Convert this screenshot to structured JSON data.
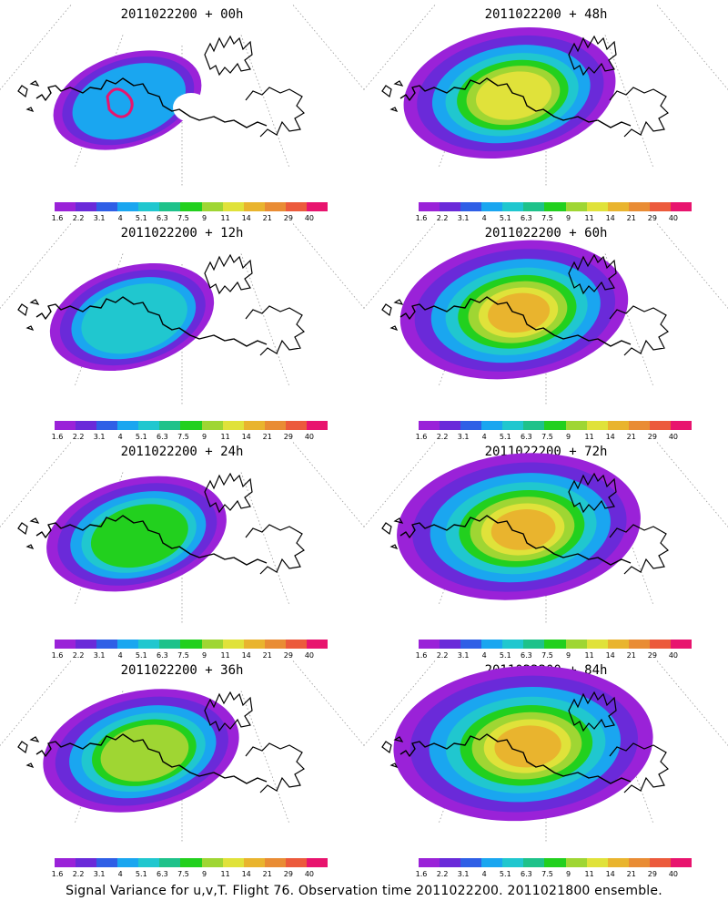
{
  "caption": "Signal Variance for u,v,T. Flight 76. Observation time 2011022200. 2011021800 ensemble.",
  "colorbar": {
    "labels": [
      "1.6",
      "2.2",
      "3.1",
      "4",
      "5.1",
      "6.3",
      "7.5",
      "9",
      "11",
      "14",
      "21",
      "29",
      "40"
    ],
    "colors": [
      "#9a22d8",
      "#6a2ad9",
      "#2f5fe6",
      "#1aa6f0",
      "#20c7cf",
      "#1ec28a",
      "#22d01e",
      "#9fd633",
      "#e0e23a",
      "#e9b42e",
      "#e98c34",
      "#ec5a3c",
      "#e8146e"
    ]
  },
  "panels": [
    {
      "id": "p00",
      "title": "2011022200 + 00h"
    },
    {
      "id": "p48",
      "title": "2011022200 + 48h"
    },
    {
      "id": "p12",
      "title": "2011022200 + 12h"
    },
    {
      "id": "p60",
      "title": "2011022200 + 60h"
    },
    {
      "id": "p24",
      "title": "2011022200 + 24h"
    },
    {
      "id": "p72",
      "title": "2011022200 + 72h"
    },
    {
      "id": "p36",
      "title": "2011022200 + 36h"
    },
    {
      "id": "p84",
      "title": "2011022200 + 84h"
    }
  ]
}
